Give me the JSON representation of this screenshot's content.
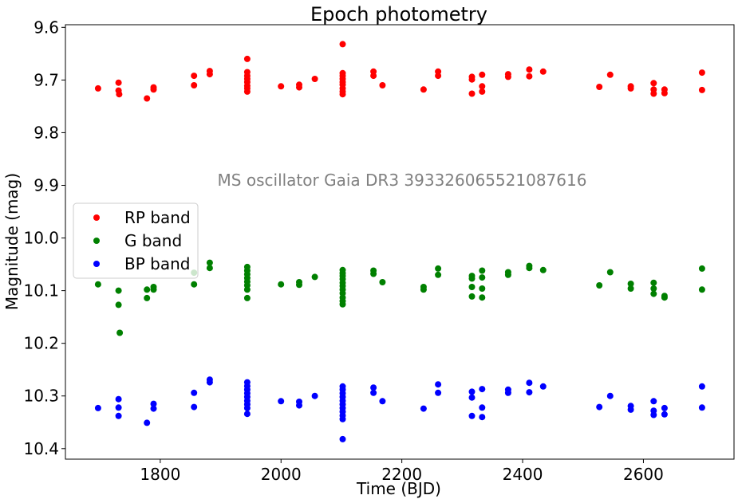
{
  "chart_data": {
    "type": "scatter",
    "title": "Epoch photometry",
    "xlabel": "Time (BJD)",
    "ylabel": "Magnitude (mag)",
    "annotation": "MS oscillator Gaia DR3 393326065521087616",
    "xlim": [
      1643,
      2750
    ],
    "ylim": [
      10.42,
      9.595
    ],
    "y_inverted": true,
    "xticks": [
      1800,
      2000,
      2200,
      2400,
      2600
    ],
    "yticks": [
      9.6,
      9.7,
      9.8,
      9.9,
      10.0,
      10.1,
      10.2,
      10.3,
      10.4
    ],
    "ytick_labels": [
      "9.6",
      "9.7",
      "9.8",
      "9.9",
      "10.0",
      "10.1",
      "10.2",
      "10.3",
      "10.4"
    ],
    "grid": false,
    "legend_position": "center-left",
    "series": [
      {
        "name": "RP band",
        "color": "#ff0000",
        "points": [
          [
            1697,
            9.716
          ],
          [
            1731,
            9.705
          ],
          [
            1731,
            9.72
          ],
          [
            1732,
            9.727
          ],
          [
            1778,
            9.735
          ],
          [
            1789,
            9.714
          ],
          [
            1789,
            9.718
          ],
          [
            1856,
            9.692
          ],
          [
            1856,
            9.71
          ],
          [
            1882,
            9.683
          ],
          [
            1882,
            9.689
          ],
          [
            1944,
            9.66
          ],
          [
            1944,
            9.685
          ],
          [
            1944,
            9.692
          ],
          [
            1944,
            9.698
          ],
          [
            1944,
            9.704
          ],
          [
            1944,
            9.711
          ],
          [
            1944,
            9.716
          ],
          [
            1944,
            9.722
          ],
          [
            2000,
            9.712
          ],
          [
            2030,
            9.709
          ],
          [
            2030,
            9.714
          ],
          [
            2056,
            9.698
          ],
          [
            2102,
            9.632
          ],
          [
            2102,
            9.687
          ],
          [
            2102,
            9.692
          ],
          [
            2102,
            9.698
          ],
          [
            2102,
            9.704
          ],
          [
            2102,
            9.709
          ],
          [
            2102,
            9.716
          ],
          [
            2102,
            9.722
          ],
          [
            2102,
            9.727
          ],
          [
            2153,
            9.684
          ],
          [
            2153,
            9.692
          ],
          [
            2168,
            9.71
          ],
          [
            2236,
            9.718
          ],
          [
            2260,
            9.684
          ],
          [
            2260,
            9.692
          ],
          [
            2316,
            9.694
          ],
          [
            2316,
            9.699
          ],
          [
            2316,
            9.726
          ],
          [
            2333,
            9.69
          ],
          [
            2333,
            9.712
          ],
          [
            2333,
            9.722
          ],
          [
            2376,
            9.689
          ],
          [
            2376,
            9.694
          ],
          [
            2411,
            9.68
          ],
          [
            2411,
            9.693
          ],
          [
            2434,
            9.684
          ],
          [
            2527,
            9.713
          ],
          [
            2545,
            9.69
          ],
          [
            2579,
            9.712
          ],
          [
            2579,
            9.716
          ],
          [
            2617,
            9.706
          ],
          [
            2617,
            9.718
          ],
          [
            2617,
            9.726
          ],
          [
            2635,
            9.718
          ],
          [
            2635,
            9.725
          ],
          [
            2697,
            9.686
          ],
          [
            2697,
            9.719
          ]
        ]
      },
      {
        "name": "G band",
        "color": "#008000",
        "points": [
          [
            1697,
            10.088
          ],
          [
            1731,
            10.1
          ],
          [
            1731,
            10.127
          ],
          [
            1733,
            10.18
          ],
          [
            1778,
            10.098
          ],
          [
            1778,
            10.114
          ],
          [
            1789,
            10.093
          ],
          [
            1789,
            10.098
          ],
          [
            1856,
            10.066
          ],
          [
            1856,
            10.088
          ],
          [
            1882,
            10.047
          ],
          [
            1882,
            10.057
          ],
          [
            1944,
            10.055
          ],
          [
            1944,
            10.062
          ],
          [
            1944,
            10.069
          ],
          [
            1944,
            10.076
          ],
          [
            1944,
            10.083
          ],
          [
            1944,
            10.09
          ],
          [
            1944,
            10.098
          ],
          [
            1944,
            10.114
          ],
          [
            2000,
            10.088
          ],
          [
            2030,
            10.084
          ],
          [
            2030,
            10.089
          ],
          [
            2056,
            10.074
          ],
          [
            2102,
            10.061
          ],
          [
            2102,
            10.067
          ],
          [
            2102,
            10.072
          ],
          [
            2102,
            10.078
          ],
          [
            2102,
            10.085
          ],
          [
            2102,
            10.091
          ],
          [
            2102,
            10.098
          ],
          [
            2102,
            10.105
          ],
          [
            2102,
            10.113
          ],
          [
            2102,
            10.12
          ],
          [
            2102,
            10.126
          ],
          [
            2153,
            10.062
          ],
          [
            2153,
            10.068
          ],
          [
            2168,
            10.084
          ],
          [
            2236,
            10.093
          ],
          [
            2236,
            10.098
          ],
          [
            2260,
            10.058
          ],
          [
            2260,
            10.07
          ],
          [
            2316,
            10.072
          ],
          [
            2316,
            10.077
          ],
          [
            2316,
            10.093
          ],
          [
            2316,
            10.111
          ],
          [
            2333,
            10.062
          ],
          [
            2333,
            10.075
          ],
          [
            2333,
            10.096
          ],
          [
            2333,
            10.113
          ],
          [
            2376,
            10.065
          ],
          [
            2376,
            10.07
          ],
          [
            2411,
            10.053
          ],
          [
            2411,
            10.057
          ],
          [
            2434,
            10.061
          ],
          [
            2527,
            10.09
          ],
          [
            2545,
            10.065
          ],
          [
            2579,
            10.087
          ],
          [
            2579,
            10.096
          ],
          [
            2617,
            10.085
          ],
          [
            2617,
            10.096
          ],
          [
            2617,
            10.106
          ],
          [
            2635,
            10.11
          ],
          [
            2635,
            10.113
          ],
          [
            2697,
            10.058
          ],
          [
            2697,
            10.098
          ]
        ]
      },
      {
        "name": "BP band",
        "color": "#0000ff",
        "points": [
          [
            1697,
            10.323
          ],
          [
            1731,
            10.306
          ],
          [
            1731,
            10.322
          ],
          [
            1731,
            10.338
          ],
          [
            1778,
            10.351
          ],
          [
            1789,
            10.315
          ],
          [
            1789,
            10.324
          ],
          [
            1856,
            10.294
          ],
          [
            1856,
            10.321
          ],
          [
            1882,
            10.269
          ],
          [
            1882,
            10.274
          ],
          [
            1944,
            10.274
          ],
          [
            1944,
            10.281
          ],
          [
            1944,
            10.288
          ],
          [
            1944,
            10.295
          ],
          [
            1944,
            10.302
          ],
          [
            1944,
            10.309
          ],
          [
            1944,
            10.316
          ],
          [
            1944,
            10.323
          ],
          [
            1944,
            10.334
          ],
          [
            2000,
            10.31
          ],
          [
            2030,
            10.311
          ],
          [
            2030,
            10.318
          ],
          [
            2056,
            10.3
          ],
          [
            2102,
            10.282
          ],
          [
            2102,
            10.288
          ],
          [
            2102,
            10.295
          ],
          [
            2102,
            10.302
          ],
          [
            2102,
            10.309
          ],
          [
            2102,
            10.316
          ],
          [
            2102,
            10.323
          ],
          [
            2102,
            10.33
          ],
          [
            2102,
            10.337
          ],
          [
            2102,
            10.344
          ],
          [
            2102,
            10.382
          ],
          [
            2153,
            10.284
          ],
          [
            2153,
            10.294
          ],
          [
            2168,
            10.31
          ],
          [
            2236,
            10.324
          ],
          [
            2260,
            10.278
          ],
          [
            2260,
            10.294
          ],
          [
            2316,
            10.292
          ],
          [
            2316,
            10.303
          ],
          [
            2316,
            10.338
          ],
          [
            2333,
            10.287
          ],
          [
            2333,
            10.322
          ],
          [
            2333,
            10.34
          ],
          [
            2376,
            10.288
          ],
          [
            2376,
            10.294
          ],
          [
            2411,
            10.275
          ],
          [
            2411,
            10.293
          ],
          [
            2434,
            10.282
          ],
          [
            2527,
            10.321
          ],
          [
            2545,
            10.3
          ],
          [
            2579,
            10.319
          ],
          [
            2579,
            10.326
          ],
          [
            2617,
            10.31
          ],
          [
            2617,
            10.328
          ],
          [
            2617,
            10.336
          ],
          [
            2635,
            10.323
          ],
          [
            2635,
            10.335
          ],
          [
            2697,
            10.282
          ],
          [
            2697,
            10.322
          ]
        ]
      }
    ]
  }
}
